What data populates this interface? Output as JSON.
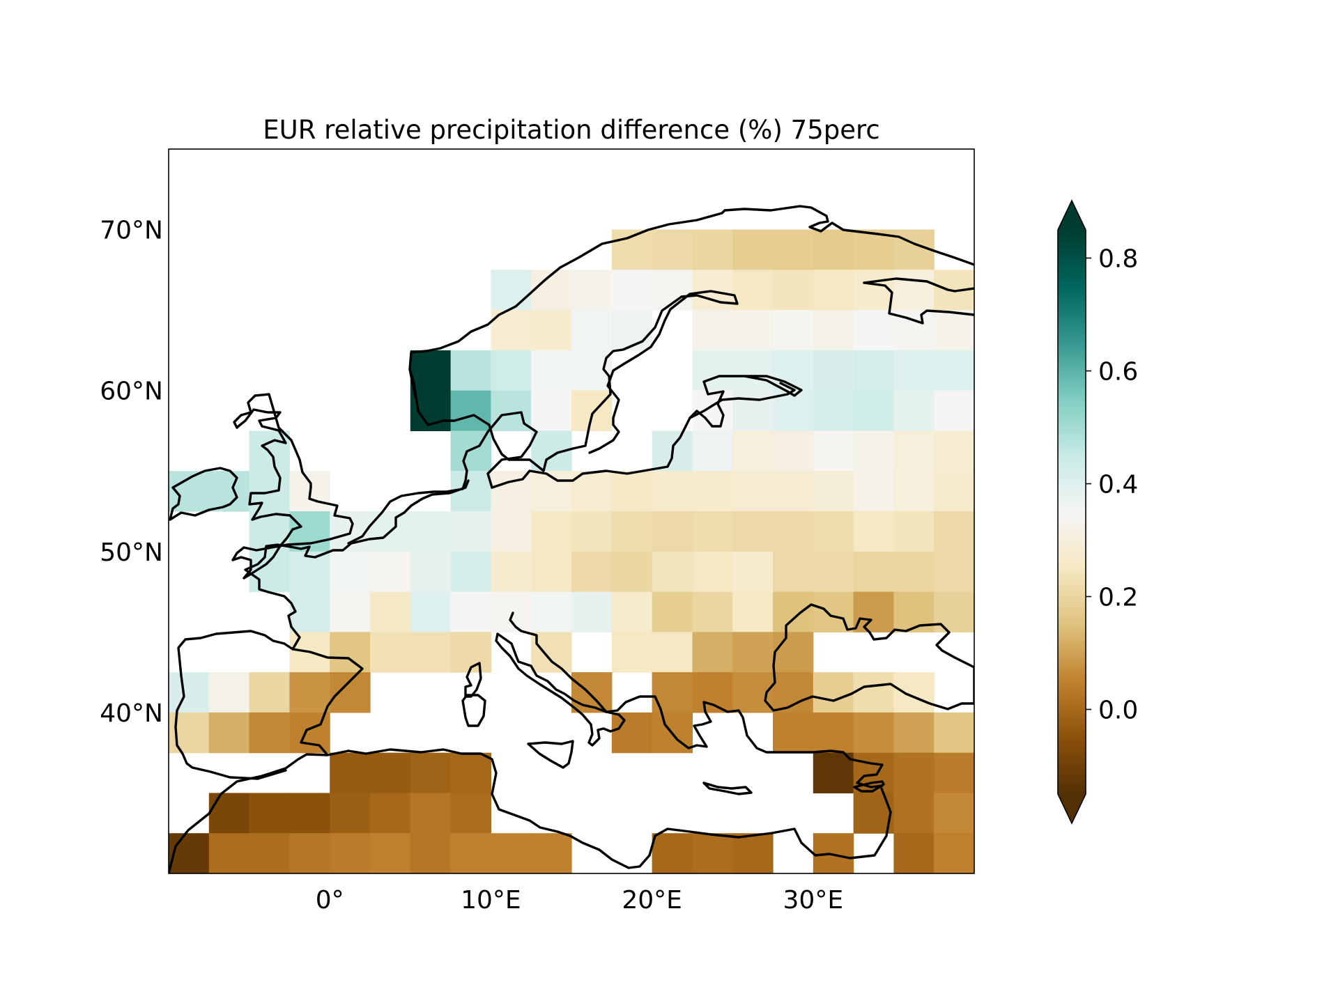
{
  "title": "EUR relative precipitation difference (%) 75perc",
  "map": {
    "region": "EUR",
    "projection": "PlateCarree",
    "lon_range": [
      -10,
      40
    ],
    "lat_range": [
      30,
      75
    ],
    "lon_ticks": [
      {
        "value": 0,
        "label": "0°"
      },
      {
        "value": 10,
        "label": "10°E"
      },
      {
        "value": 20,
        "label": "20°E"
      },
      {
        "value": 30,
        "label": "30°E"
      }
    ],
    "lat_ticks": [
      {
        "value": 40,
        "label": "40°N"
      },
      {
        "value": 50,
        "label": "50°N"
      },
      {
        "value": 60,
        "label": "60°N"
      },
      {
        "value": 70,
        "label": "70°N"
      }
    ],
    "grid": {
      "lon0": -10,
      "dlon": 2.5,
      "lat_top": 70,
      "dlat": 2.5,
      "ncols": 20,
      "note_null": "masked / no data",
      "rows": [
        [
          null,
          null,
          null,
          null,
          null,
          null,
          null,
          null,
          null,
          null,
          null,
          0.22,
          0.21,
          0.2,
          0.18,
          0.18,
          0.17,
          0.18,
          0.19,
          null
        ],
        [
          null,
          null,
          null,
          null,
          null,
          null,
          null,
          null,
          0.4,
          0.31,
          0.33,
          0.35,
          0.34,
          0.28,
          0.25,
          0.24,
          0.25,
          0.27,
          0.3,
          0.24
        ],
        [
          null,
          null,
          null,
          null,
          null,
          null,
          null,
          null,
          0.28,
          0.27,
          0.36,
          0.37,
          null,
          0.33,
          0.33,
          0.34,
          0.32,
          0.35,
          0.34,
          0.33
        ],
        [
          null,
          null,
          null,
          null,
          null,
          null,
          0.85,
          0.47,
          0.43,
          0.36,
          0.36,
          null,
          null,
          0.39,
          0.39,
          0.4,
          0.41,
          0.42,
          0.4,
          0.4
        ],
        [
          null,
          null,
          null,
          null,
          null,
          null,
          0.85,
          0.59,
          0.47,
          0.35,
          0.25,
          null,
          null,
          0.35,
          0.38,
          0.4,
          0.42,
          0.43,
          0.39,
          0.35
        ],
        [
          null,
          null,
          0.44,
          null,
          null,
          null,
          null,
          0.5,
          null,
          0.44,
          null,
          null,
          0.41,
          0.37,
          0.3,
          0.31,
          0.34,
          0.33,
          0.3,
          0.28
        ],
        [
          0.47,
          0.47,
          0.44,
          0.33,
          null,
          null,
          null,
          0.44,
          0.31,
          0.3,
          0.28,
          0.26,
          0.27,
          0.27,
          0.28,
          0.28,
          0.29,
          0.32,
          0.3,
          0.27
        ],
        [
          null,
          null,
          0.44,
          0.51,
          0.38,
          0.39,
          0.39,
          0.38,
          0.31,
          0.25,
          0.24,
          0.22,
          0.21,
          0.22,
          0.21,
          0.21,
          0.22,
          0.25,
          0.24,
          0.21
        ],
        [
          null,
          null,
          0.44,
          0.42,
          0.36,
          0.34,
          0.38,
          0.42,
          0.27,
          0.25,
          0.21,
          0.2,
          0.24,
          0.25,
          0.27,
          0.21,
          0.21,
          0.2,
          0.2,
          0.21
        ],
        [
          null,
          null,
          null,
          0.42,
          0.34,
          0.26,
          0.4,
          0.35,
          0.34,
          0.36,
          0.38,
          0.27,
          0.18,
          0.2,
          0.25,
          0.15,
          0.16,
          0.09,
          0.15,
          0.19
        ],
        [
          null,
          null,
          null,
          0.25,
          0.16,
          0.23,
          0.23,
          0.21,
          null,
          0.23,
          null,
          0.25,
          0.25,
          0.12,
          0.1,
          0.09,
          null,
          null,
          null,
          null
        ],
        [
          0.41,
          0.32,
          0.2,
          0.08,
          0.06,
          null,
          null,
          null,
          null,
          null,
          0.06,
          null,
          0.06,
          0.05,
          0.07,
          0.06,
          0.18,
          0.22,
          0.25,
          null
        ],
        [
          0.2,
          0.12,
          0.06,
          0.05,
          null,
          null,
          null,
          null,
          null,
          null,
          null,
          0.04,
          0.05,
          null,
          null,
          0.05,
          0.05,
          0.07,
          0.1,
          0.16
        ],
        [
          null,
          null,
          null,
          null,
          -0.03,
          -0.03,
          -0.01,
          0.0,
          null,
          null,
          null,
          null,
          null,
          null,
          null,
          null,
          -0.13,
          0.0,
          0.02,
          0.04
        ],
        [
          null,
          -0.08,
          -0.05,
          -0.05,
          -0.02,
          0.0,
          0.03,
          0.01,
          null,
          null,
          null,
          null,
          null,
          null,
          null,
          null,
          null,
          -0.01,
          0.02,
          0.06
        ],
        [
          -0.12,
          0.01,
          0.01,
          0.03,
          0.04,
          0.05,
          0.03,
          0.05,
          0.05,
          0.05,
          null,
          null,
          0.0,
          0.01,
          0.0,
          null,
          0.02,
          null,
          0.0,
          0.05
        ]
      ]
    }
  },
  "colorbar": {
    "cmap": "BrBG",
    "vmin": -0.15,
    "vmax": 0.85,
    "extend": "both",
    "ticks": [
      {
        "value": 0.0,
        "label": "0.0"
      },
      {
        "value": 0.2,
        "label": "0.2"
      },
      {
        "value": 0.4,
        "label": "0.4"
      },
      {
        "value": 0.6,
        "label": "0.6"
      },
      {
        "value": 0.8,
        "label": "0.8"
      }
    ],
    "colors": [
      "#543005",
      "#8c510a",
      "#bf812d",
      "#dfc27d",
      "#f6e8c3",
      "#f5f5f5",
      "#c7eae5",
      "#80cdc1",
      "#35978f",
      "#01665e",
      "#003c30"
    ]
  }
}
